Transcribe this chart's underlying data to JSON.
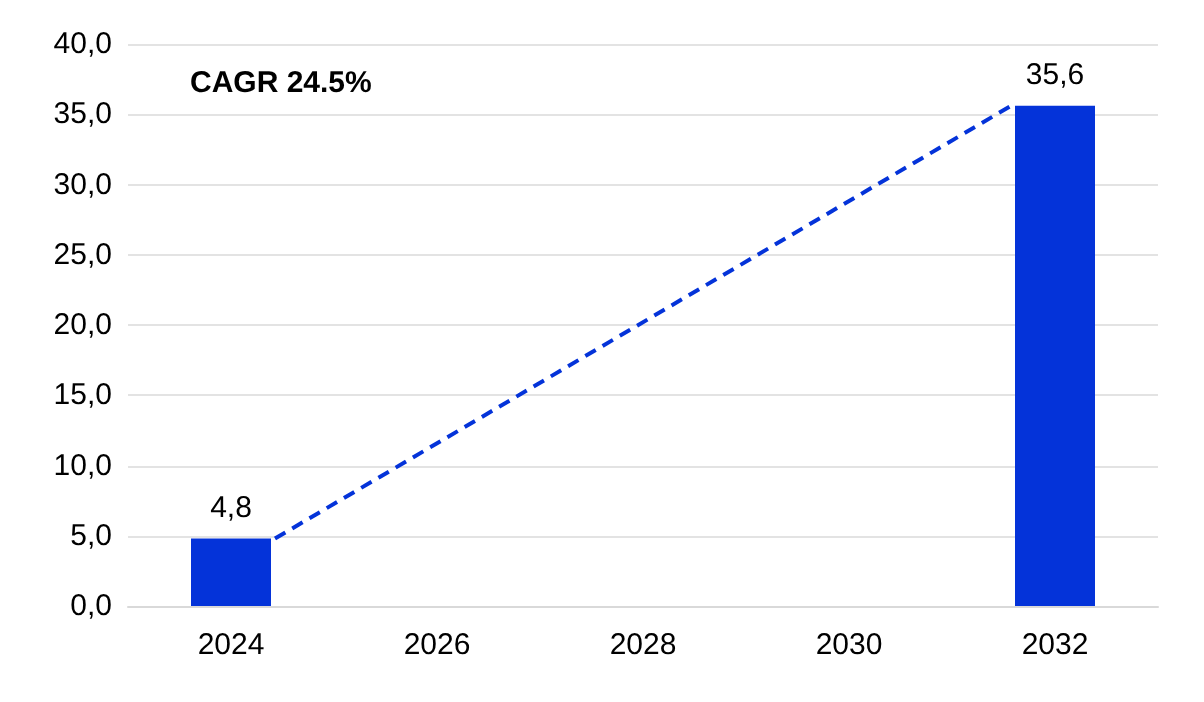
{
  "chart_data": {
    "type": "bar",
    "categories": [
      "2024",
      "2026",
      "2028",
      "2030",
      "2032"
    ],
    "series": [
      {
        "color": "#0433d9",
        "values": [
          4.8,
          null,
          null,
          null,
          35.6
        ],
        "value_labels": [
          "4,8",
          null,
          null,
          null,
          "35,6"
        ]
      }
    ],
    "ylim": [
      0,
      40
    ],
    "yticks": [
      {
        "value": 0,
        "label": "0,0"
      },
      {
        "value": 5,
        "label": "5,0"
      },
      {
        "value": 10,
        "label": "10,0"
      },
      {
        "value": 15,
        "label": "15,0"
      },
      {
        "value": 20,
        "label": "20,0"
      },
      {
        "value": 25,
        "label": "25,0"
      },
      {
        "value": 30,
        "label": "30,0"
      },
      {
        "value": 35,
        "label": "35,0"
      },
      {
        "value": 40,
        "label": "40,0"
      }
    ],
    "annotations": [
      "CAGR 24.5%"
    ],
    "grid": "y"
  }
}
